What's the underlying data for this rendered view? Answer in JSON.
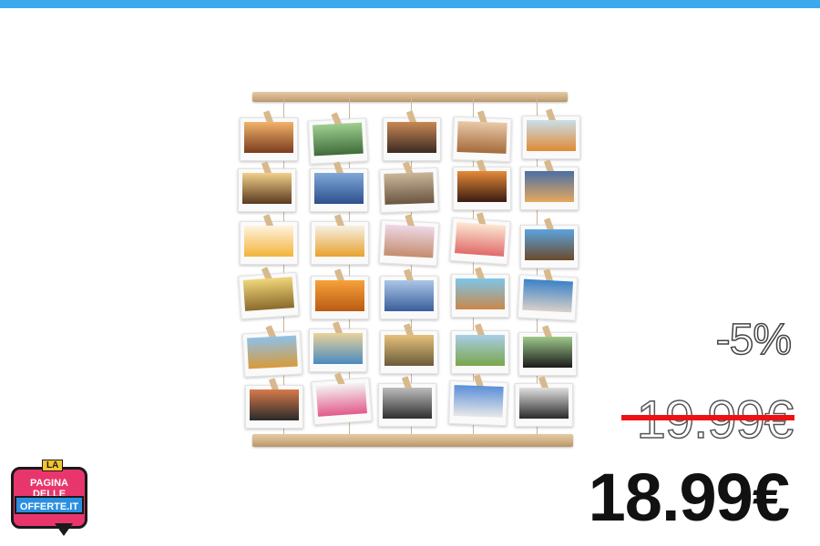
{
  "banner": {
    "accent_color": "#3aa9ee"
  },
  "product": {
    "icon": "hanging-photo-display-frame"
  },
  "price": {
    "discount": "-5%",
    "old_price": "19.99€",
    "new_price": "18.99€",
    "strike_color": "#ee1111"
  },
  "logo": {
    "top": "LA",
    "line1": "PAGINA DELLE",
    "line2": "OFFERTE.IT"
  }
}
